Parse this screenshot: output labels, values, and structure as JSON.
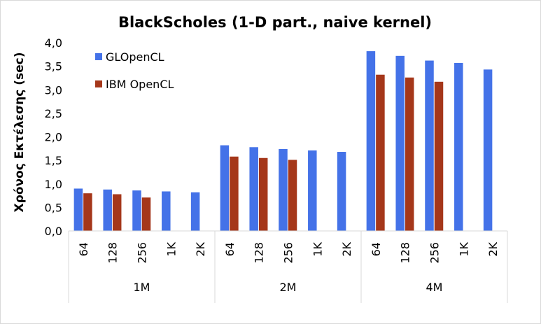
{
  "chart_data": {
    "type": "bar",
    "title": "BlackScholes (1-D part., naive kernel)",
    "ylabel": "Χρόνος Εκτέλεσης (sec)",
    "xlabel": "",
    "ylim": [
      0,
      4.0
    ],
    "yticks": [
      "0,0",
      "0,5",
      "1,0",
      "1,5",
      "2,0",
      "2,5",
      "3,0",
      "3,5",
      "4,0"
    ],
    "ytick_values": [
      0,
      0.5,
      1.0,
      1.5,
      2.0,
      2.5,
      3.0,
      3.5,
      4.0
    ],
    "grid": false,
    "legend_position": "top-left",
    "groups": [
      {
        "label": "1M",
        "categories": [
          "64",
          "128",
          "256",
          "1K",
          "2K"
        ]
      },
      {
        "label": "2M",
        "categories": [
          "64",
          "128",
          "256",
          "1K",
          "2K"
        ]
      },
      {
        "label": "4M",
        "categories": [
          "64",
          "128",
          "256",
          "1K",
          "2K"
        ]
      }
    ],
    "series": [
      {
        "name": "GLOpenCL",
        "color": "#4472e8",
        "values": [
          0.9,
          0.88,
          0.86,
          0.84,
          0.82,
          1.82,
          1.78,
          1.74,
          1.71,
          1.68,
          3.82,
          3.72,
          3.62,
          3.57,
          3.43
        ]
      },
      {
        "name": "IBM OpenCL",
        "color": "#a5371a",
        "values": [
          0.8,
          0.78,
          0.71,
          null,
          null,
          1.58,
          1.55,
          1.51,
          null,
          null,
          3.32,
          3.26,
          3.17,
          null,
          null
        ]
      }
    ]
  }
}
